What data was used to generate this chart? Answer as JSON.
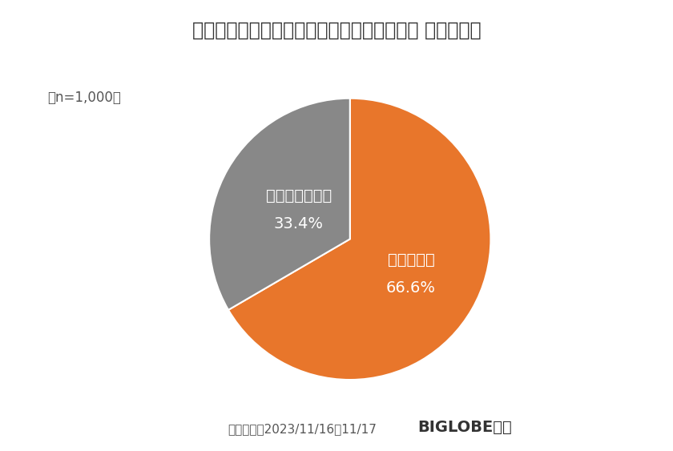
{
  "title": "（費用や混雑という課題が言われていても） 温泉は好き",
  "sample_size": "（n=1,000）",
  "slices": [
    66.6,
    33.4
  ],
  "labels": [
    "あてはまる",
    "あてはまらない"
  ],
  "percentages": [
    "66.6%",
    "33.4%"
  ],
  "colors": [
    "#E8762B",
    "#888888"
  ],
  "start_angle": 90,
  "footer_left": "調査期間：2023/11/16～11/17",
  "footer_right": "BIGLOBE調べ",
  "background_color": "#ffffff",
  "title_fontsize": 17,
  "label_fontsize": 14,
  "pct_fontsize": 14,
  "footer_fontsize": 11,
  "sample_fontsize": 12
}
